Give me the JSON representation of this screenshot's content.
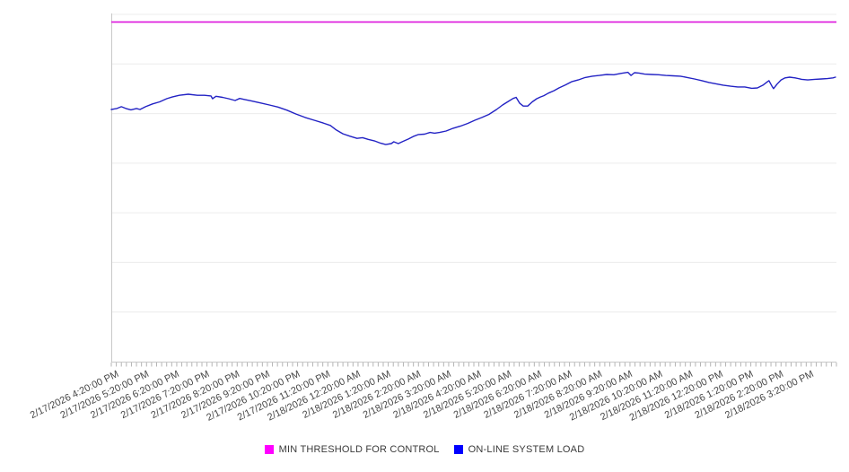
{
  "chart_data": {
    "type": "line",
    "title": "",
    "xlabel": "",
    "ylabel": "",
    "ylim": [
      0,
      100
    ],
    "y_gridline_divisions": 7,
    "y_tick_labels_visible": false,
    "legend_position": "bottom",
    "x_axis_span_hours": 24,
    "x_minor_tick_minutes": 10,
    "x_labels": [
      "2/17/2026 4:20:00 PM",
      "2/17/2026 5:20:00 PM",
      "2/17/2026 6:20:00 PM",
      "2/17/2026 7:20:00 PM",
      "2/17/2026 8:20:00 PM",
      "2/17/2026 9:20:00 PM",
      "2/17/2026 10:20:00 PM",
      "2/17/2026 11:20:00 PM",
      "2/18/2026 12:20:00 AM",
      "2/18/2026 1:20:00 AM",
      "2/18/2026 2:20:00 AM",
      "2/18/2026 3:20:00 AM",
      "2/18/2026 4:20:00 AM",
      "2/18/2026 5:20:00 AM",
      "2/18/2026 6:20:00 AM",
      "2/18/2026 7:20:00 AM",
      "2/18/2026 8:20:00 AM",
      "2/18/2026 9:20:00 AM",
      "2/18/2026 10:20:00 AM",
      "2/18/2026 11:20:00 AM",
      "2/18/2026 12:20:00 PM",
      "2/18/2026 1:20:00 PM",
      "2/18/2026 2:20:00 PM",
      "2/18/2026 3:20:00 PM"
    ],
    "series": [
      {
        "name": "MIN THRESHOLD FOR CONTROL",
        "color": "#FF00FF",
        "line_color": "#DD14DD",
        "type": "constant",
        "value": 97.8
      },
      {
        "name": "ON-LINE SYSTEM LOAD",
        "color": "#0000FF",
        "line_color": "#2222C4",
        "type": "line",
        "points": [
          [
            0,
            72.6
          ],
          [
            11,
            72.9
          ],
          [
            20,
            73.4
          ],
          [
            29,
            72.9
          ],
          [
            39,
            72.5
          ],
          [
            50,
            72.9
          ],
          [
            57,
            72.6
          ],
          [
            68,
            73.4
          ],
          [
            82,
            74.2
          ],
          [
            96,
            74.8
          ],
          [
            110,
            75.7
          ],
          [
            121,
            76.2
          ],
          [
            135,
            76.7
          ],
          [
            153,
            77.0
          ],
          [
            171,
            76.7
          ],
          [
            185,
            76.7
          ],
          [
            198,
            76.5
          ],
          [
            201,
            75.7
          ],
          [
            208,
            76.4
          ],
          [
            221,
            76.1
          ],
          [
            233,
            75.7
          ],
          [
            246,
            75.2
          ],
          [
            255,
            75.8
          ],
          [
            264,
            75.5
          ],
          [
            278,
            75.1
          ],
          [
            296,
            74.5
          ],
          [
            314,
            73.9
          ],
          [
            331,
            73.3
          ],
          [
            349,
            72.4
          ],
          [
            367,
            71.3
          ],
          [
            385,
            70.3
          ],
          [
            403,
            69.5
          ],
          [
            421,
            68.7
          ],
          [
            435,
            68.0
          ],
          [
            447,
            66.7
          ],
          [
            460,
            65.6
          ],
          [
            474,
            64.9
          ],
          [
            488,
            64.3
          ],
          [
            499,
            64.5
          ],
          [
            510,
            64.0
          ],
          [
            522,
            63.6
          ],
          [
            535,
            62.9
          ],
          [
            545,
            62.5
          ],
          [
            556,
            62.8
          ],
          [
            561,
            63.3
          ],
          [
            570,
            62.8
          ],
          [
            579,
            63.4
          ],
          [
            590,
            64.1
          ],
          [
            601,
            64.9
          ],
          [
            610,
            65.4
          ],
          [
            622,
            65.5
          ],
          [
            633,
            66.0
          ],
          [
            642,
            65.8
          ],
          [
            652,
            66.0
          ],
          [
            665,
            66.4
          ],
          [
            679,
            67.2
          ],
          [
            693,
            67.8
          ],
          [
            708,
            68.6
          ],
          [
            722,
            69.5
          ],
          [
            736,
            70.3
          ],
          [
            750,
            71.2
          ],
          [
            765,
            72.6
          ],
          [
            777,
            73.9
          ],
          [
            788,
            74.9
          ],
          [
            798,
            75.8
          ],
          [
            804,
            76.1
          ],
          [
            811,
            74.4
          ],
          [
            818,
            73.6
          ],
          [
            827,
            73.6
          ],
          [
            836,
            74.8
          ],
          [
            845,
            75.7
          ],
          [
            852,
            76.2
          ],
          [
            859,
            76.6
          ],
          [
            868,
            77.3
          ],
          [
            879,
            78.0
          ],
          [
            889,
            78.8
          ],
          [
            902,
            79.7
          ],
          [
            914,
            80.6
          ],
          [
            927,
            81.1
          ],
          [
            941,
            81.8
          ],
          [
            955,
            82.2
          ],
          [
            969,
            82.4
          ],
          [
            984,
            82.7
          ],
          [
            998,
            82.6
          ],
          [
            1012,
            83.0
          ],
          [
            1026,
            83.3
          ],
          [
            1032,
            82.4
          ],
          [
            1039,
            83.2
          ],
          [
            1048,
            83.1
          ],
          [
            1059,
            82.8
          ],
          [
            1073,
            82.7
          ],
          [
            1087,
            82.6
          ],
          [
            1101,
            82.4
          ],
          [
            1116,
            82.3
          ],
          [
            1130,
            82.2
          ],
          [
            1144,
            81.8
          ],
          [
            1158,
            81.4
          ],
          [
            1173,
            80.9
          ],
          [
            1187,
            80.4
          ],
          [
            1201,
            80.0
          ],
          [
            1215,
            79.6
          ],
          [
            1230,
            79.3
          ],
          [
            1244,
            79.1
          ],
          [
            1258,
            79.1
          ],
          [
            1272,
            78.7
          ],
          [
            1283,
            78.8
          ],
          [
            1294,
            79.6
          ],
          [
            1303,
            80.6
          ],
          [
            1306,
            80.9
          ],
          [
            1312,
            79.3
          ],
          [
            1315,
            78.6
          ],
          [
            1322,
            79.9
          ],
          [
            1330,
            81.1
          ],
          [
            1338,
            81.7
          ],
          [
            1347,
            81.9
          ],
          [
            1358,
            81.7
          ],
          [
            1371,
            81.3
          ],
          [
            1383,
            81.1
          ],
          [
            1397,
            81.3
          ],
          [
            1410,
            81.4
          ],
          [
            1422,
            81.5
          ],
          [
            1433,
            81.7
          ],
          [
            1438,
            81.9
          ]
        ]
      }
    ]
  },
  "colors": {
    "background": "#ffffff",
    "gridline": "#ececec",
    "axis": "#c8c8c8",
    "tick": "#b4b4b4",
    "axis_label_text": "#474747",
    "legend_text": "#3a3a3a"
  }
}
